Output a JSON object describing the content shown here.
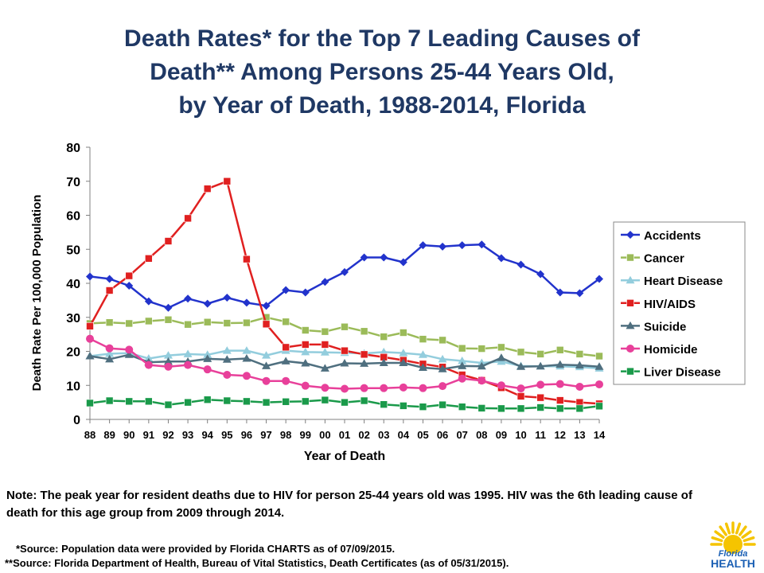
{
  "chart_data": {
    "type": "line",
    "title_lines": [
      "Death Rates* for the Top 7 Leading Causes of",
      "Death** Among Persons 25-44 Years Old,",
      "by Year of Death, 1988-2014, Florida"
    ],
    "xlabel": "Year of Death",
    "ylabel": "Death Rate Per 100,000 Population",
    "ylim": [
      0,
      80
    ],
    "y_ticks": [
      "0",
      "10",
      "20",
      "30",
      "40",
      "50",
      "60",
      "70",
      "80"
    ],
    "categories": [
      "88",
      "89",
      "90",
      "91",
      "92",
      "93",
      "94",
      "95",
      "96",
      "97",
      "98",
      "99",
      "00",
      "01",
      "02",
      "03",
      "04",
      "05",
      "06",
      "07",
      "08",
      "09",
      "10",
      "11",
      "12",
      "13",
      "14"
    ],
    "legend_position": "right",
    "grid": false,
    "series": [
      {
        "name": "Accidents",
        "color": "#2233cc",
        "marker": "diamond",
        "values": [
          42.0,
          41.3,
          39.3,
          34.7,
          32.8,
          35.5,
          34.0,
          35.8,
          34.3,
          33.4,
          38.0,
          37.3,
          40.4,
          43.3,
          47.6,
          47.6,
          46.2,
          51.2,
          50.8,
          51.2,
          51.4,
          47.4,
          45.5,
          42.7,
          37.3,
          37.1,
          41.3
        ]
      },
      {
        "name": "Cancer",
        "color": "#9bbb59",
        "marker": "square",
        "values": [
          28.2,
          28.5,
          28.2,
          28.9,
          29.3,
          27.9,
          28.6,
          28.3,
          28.4,
          30.0,
          28.7,
          26.2,
          25.8,
          27.2,
          25.9,
          24.3,
          25.5,
          23.6,
          23.3,
          20.9,
          20.8,
          21.2,
          19.8,
          19.2,
          20.4,
          19.2,
          18.6
        ]
      },
      {
        "name": "Heart Disease",
        "color": "#93cddd",
        "marker": "triangle",
        "values": [
          18.6,
          19.3,
          19.5,
          17.9,
          18.8,
          19.2,
          19.0,
          20.2,
          20.2,
          18.8,
          20.2,
          19.8,
          19.7,
          19.6,
          19.4,
          19.8,
          19.5,
          19.0,
          17.7,
          17.2,
          16.6,
          17.0,
          15.7,
          15.6,
          15.6,
          15.4,
          15.0
        ]
      },
      {
        "name": "HIV/AIDS",
        "color": "#e02020",
        "marker": "square",
        "values": [
          27.4,
          37.9,
          42.2,
          47.3,
          52.4,
          59.1,
          67.8,
          70.0,
          47.1,
          28.0,
          21.2,
          22.0,
          22.0,
          20.2,
          19.1,
          18.3,
          17.4,
          16.3,
          15.4,
          13.1,
          11.5,
          9.3,
          6.8,
          6.4,
          5.6,
          5.0,
          4.6
        ]
      },
      {
        "name": "Suicide",
        "color": "#4f6f7f",
        "marker": "triangle",
        "values": [
          18.6,
          17.7,
          19.0,
          16.8,
          17.0,
          17.0,
          17.8,
          17.6,
          17.9,
          15.7,
          17.1,
          16.5,
          15.0,
          16.5,
          16.4,
          16.6,
          16.6,
          15.2,
          14.8,
          15.7,
          15.6,
          18.1,
          15.5,
          15.6,
          16.1,
          15.9,
          15.5
        ]
      },
      {
        "name": "Homicide",
        "color": "#e8409a",
        "marker": "circle",
        "values": [
          23.7,
          20.9,
          20.5,
          16.0,
          15.5,
          16.0,
          14.7,
          13.1,
          12.8,
          11.3,
          11.3,
          9.9,
          9.3,
          9.0,
          9.2,
          9.2,
          9.4,
          9.2,
          9.8,
          12.0,
          11.4,
          10.0,
          9.1,
          10.2,
          10.4,
          9.6,
          10.3
        ]
      },
      {
        "name": "Liver Disease",
        "color": "#1a9a4a",
        "marker": "square",
        "values": [
          4.8,
          5.5,
          5.3,
          5.3,
          4.3,
          5.0,
          5.8,
          5.5,
          5.3,
          5.0,
          5.2,
          5.3,
          5.7,
          5.0,
          5.5,
          4.4,
          4.0,
          3.7,
          4.3,
          3.7,
          3.3,
          3.2,
          3.2,
          3.5,
          3.2,
          3.2,
          3.9
        ]
      }
    ]
  },
  "note": "Note:  The peak year for resident deaths due to HIV for person 25-44 years old was 1995. HIV was the 6th leading cause of death for this age group from 2009 through 2014.",
  "source_1": "*Source:  Population data were provided by Florida CHARTS as of 07/09/2015.",
  "source_2": "**Source:  Florida Department of Health, Bureau of Vital Statistics, Death Certificates (as of 05/31/2015).",
  "logo": {
    "line1": "Florida",
    "line2": "HEALTH",
    "sun_color": "#f5c400",
    "text_color": "#1a5fb4"
  }
}
